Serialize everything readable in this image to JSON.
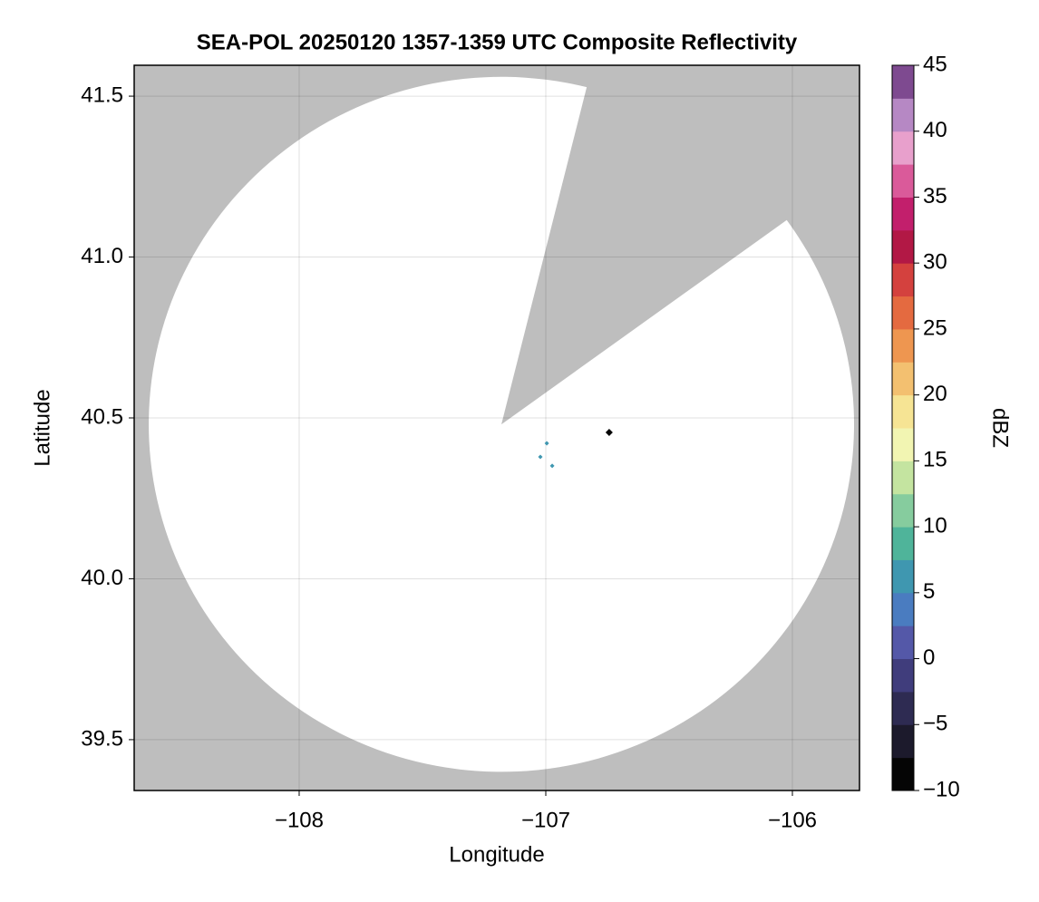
{
  "chart_data": {
    "type": "map",
    "title": "SEA-POL 20250120 1357-1359 UTC Composite Reflectivity",
    "xlabel": "Longitude",
    "ylabel": "Latitude",
    "colorbar_label": "dBZ",
    "xlim": [
      -108.669,
      -105.728
    ],
    "ylim": [
      39.342,
      41.596
    ],
    "xticks": [
      {
        "value": -108,
        "label": "−108"
      },
      {
        "value": -107,
        "label": "−107"
      },
      {
        "value": -106,
        "label": "−106"
      }
    ],
    "yticks": [
      39.5,
      {
        "value": 40,
        "label": "40.0"
      },
      40.5,
      {
        "value": 41,
        "label": "41.0"
      },
      41.5
    ],
    "grid": true,
    "background_color": "#bebebe",
    "coverage": {
      "color": "#ffffff",
      "center": [
        -107.18,
        40.48
      ],
      "radius_lon": 1.43,
      "radius_lat": 1.08,
      "blocked_azimuth": [
        14,
        54
      ]
    },
    "clim": [
      -10,
      45
    ],
    "cticks": [
      {
        "value": -10,
        "label": "−10"
      },
      {
        "value": -5,
        "label": "−5"
      },
      0,
      5,
      10,
      15,
      20,
      25,
      30,
      35,
      40,
      45
    ],
    "colormap": [
      "#050505",
      "#1c1a2c",
      "#2e2b52",
      "#403d7c",
      "#5458a8",
      "#4a7cc0",
      "#3f97b0",
      "#4fb49a",
      "#86cc9e",
      "#c4e4a0",
      "#f2f5b2",
      "#f6e494",
      "#f3c070",
      "#ee9650",
      "#e46a40",
      "#d4413e",
      "#b21845",
      "#c21f6c",
      "#da5a9a",
      "#e8a0cc",
      "#b688c4",
      "#7e4a90"
    ],
    "points": {
      "lon": [
        -106.743,
        -106.996,
        -107.022,
        -106.974
      ],
      "lat": [
        40.455,
        40.421,
        40.379,
        40.351
      ],
      "dbz": [
        -10,
        5,
        5,
        5
      ]
    }
  }
}
